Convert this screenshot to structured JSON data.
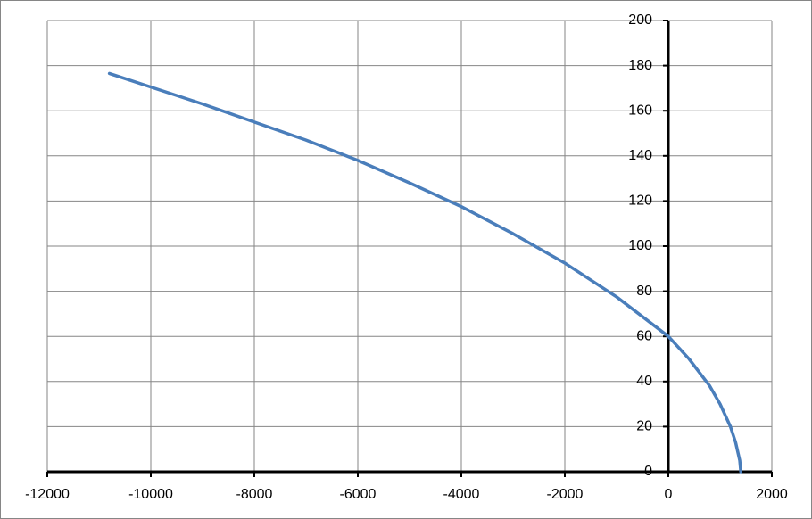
{
  "chart_data": {
    "type": "line",
    "x": [
      -10800,
      -10000,
      -9000,
      -8000,
      -7000,
      -6000,
      -5000,
      -4000,
      -3000,
      -2000,
      -1000,
      0,
      400,
      800,
      1000,
      1200,
      1300,
      1380,
      1400
    ],
    "series": [
      {
        "color": "#4a7ebb",
        "values": [
          176.5,
          170.5,
          163,
          155,
          147,
          138,
          128,
          117.5,
          105.5,
          92.5,
          77.5,
          60,
          50,
          38,
          30,
          20,
          13,
          5,
          0
        ]
      }
    ],
    "xlim": [
      -12000,
      2000
    ],
    "xticks": [
      -12000,
      -10000,
      -8000,
      -6000,
      -4000,
      -2000,
      0,
      2000
    ],
    "ylim": [
      0,
      200
    ],
    "yticks": [
      0,
      20,
      40,
      60,
      80,
      100,
      120,
      140,
      160,
      180,
      200
    ],
    "grid": true
  }
}
